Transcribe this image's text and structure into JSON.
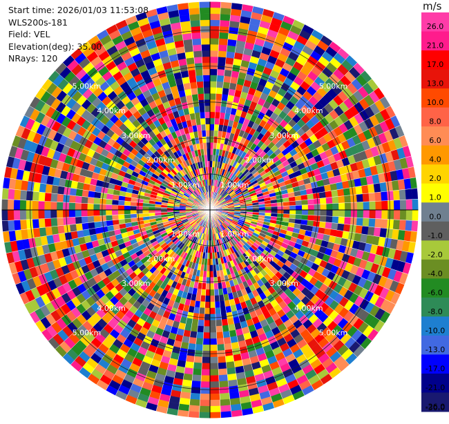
{
  "header": {
    "start_time": "Start time: 2026/01/03 11:53:08",
    "site": "WLS200s-181",
    "field": "Field: VEL",
    "elevation": "Elevation(deg): 35.00",
    "nrays": "NRays: 120"
  },
  "colorbar": {
    "unit": "m/s",
    "ticks": [
      "26.0",
      "21.0",
      "17.0",
      "13.0",
      "10.0",
      "8.0",
      "6.0",
      "4.0",
      "2.0",
      "1.0",
      "0.0",
      "-1.0",
      "-2.0",
      "-4.0",
      "-6.0",
      "-8.0",
      "-10.0",
      "-13.0",
      "-17.0",
      "-21.0",
      "-26.0",
      "-30.0"
    ],
    "colors": [
      "#ff3ca8",
      "#ff1c8c",
      "#ff0000",
      "#e8140a",
      "#ff4a00",
      "#ff6347",
      "#ff8c55",
      "#ff9800",
      "#ffd400",
      "#ffff00",
      "#708090",
      "#5f5f5f",
      "#a8c93a",
      "#6b8e23",
      "#228b22",
      "#2e8b57",
      "#1e7fd0",
      "#4169e1",
      "#0000ff",
      "#00008b",
      "#191970"
    ]
  },
  "chart_data": {
    "type": "ppi_polar",
    "field": "VEL",
    "nrays": 120,
    "elevation_deg": 35.0,
    "range_ring_labels": [
      "1.00km",
      "2.00km",
      "3.00km",
      "4.00km",
      "5.00km"
    ],
    "range_rings_km": [
      1,
      2,
      3,
      4,
      5
    ],
    "max_range_km": 5.8,
    "unit": "m/s",
    "value_range": [
      -30,
      26
    ]
  }
}
